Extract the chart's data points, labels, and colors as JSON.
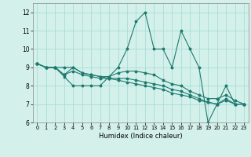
{
  "xlabel": "Humidex (Indice chaleur)",
  "xlim": [
    -0.5,
    23.5
  ],
  "ylim": [
    6,
    12.5
  ],
  "yticks": [
    6,
    7,
    8,
    9,
    10,
    11,
    12
  ],
  "xticks": [
    0,
    1,
    2,
    3,
    4,
    5,
    6,
    7,
    8,
    9,
    10,
    11,
    12,
    13,
    14,
    15,
    16,
    17,
    18,
    19,
    20,
    21,
    22,
    23
  ],
  "background_color": "#d4f0eb",
  "grid_color": "#a8ddd6",
  "line_color": "#1d7a6e",
  "series": [
    [
      9.2,
      9.0,
      9.0,
      8.5,
      8.0,
      8.0,
      8.0,
      8.0,
      8.5,
      9.0,
      10.0,
      11.5,
      12.0,
      10.0,
      10.0,
      9.0,
      11.0,
      10.0,
      9.0,
      6.0,
      7.0,
      8.0,
      7.0,
      7.0
    ],
    [
      9.2,
      9.0,
      9.0,
      8.6,
      9.0,
      8.7,
      8.6,
      8.5,
      8.5,
      8.7,
      8.8,
      8.8,
      8.7,
      8.6,
      8.3,
      8.1,
      8.0,
      7.7,
      7.5,
      7.3,
      7.3,
      7.5,
      7.2,
      7.0
    ],
    [
      9.2,
      9.0,
      9.0,
      8.6,
      8.8,
      8.6,
      8.5,
      8.4,
      8.4,
      8.4,
      8.4,
      8.3,
      8.2,
      8.1,
      8.0,
      7.8,
      7.7,
      7.5,
      7.3,
      7.1,
      7.0,
      7.2,
      7.0,
      7.0
    ],
    [
      9.2,
      9.0,
      9.0,
      9.0,
      9.0,
      8.7,
      8.6,
      8.5,
      8.4,
      8.3,
      8.2,
      8.1,
      8.0,
      7.9,
      7.8,
      7.6,
      7.5,
      7.4,
      7.2,
      7.1,
      7.0,
      7.3,
      7.0,
      7.0
    ]
  ]
}
